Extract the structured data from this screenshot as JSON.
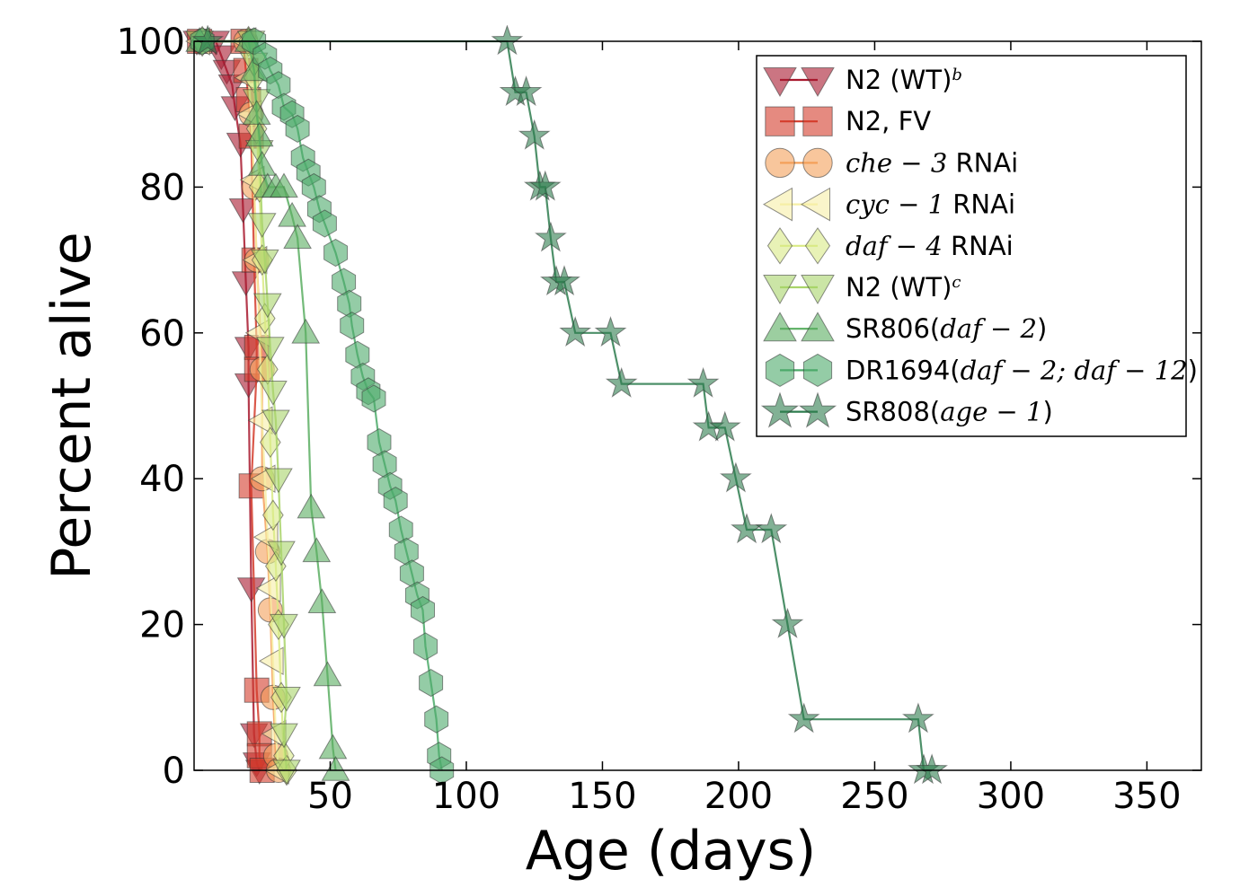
{
  "chart_data": {
    "type": "line",
    "title": "",
    "xlabel": "Age (days)",
    "ylabel": "Percent alive",
    "xlim": [
      0,
      370
    ],
    "ylim": [
      0,
      100
    ],
    "xticks": [
      50,
      100,
      150,
      200,
      250,
      300,
      350
    ],
    "yticks": [
      0,
      20,
      40,
      60,
      80,
      100
    ],
    "grid": false,
    "legend_position": "top-right",
    "series": [
      {
        "name": "N2 (WT)",
        "name_sup": "b",
        "legend": [
          {
            "text": "N2 (WT)",
            "italic": false
          },
          {
            "text": "b",
            "italic": true,
            "sup": true
          }
        ],
        "marker": "triangle-down",
        "color": "#a8192e",
        "points": [
          [
            1,
            100
          ],
          [
            8,
            100
          ],
          [
            10,
            98
          ],
          [
            12,
            96
          ],
          [
            14,
            94
          ],
          [
            15,
            91
          ],
          [
            17,
            86
          ],
          [
            18,
            77
          ],
          [
            19,
            67
          ],
          [
            20,
            58
          ],
          [
            20,
            53
          ],
          [
            21,
            25
          ],
          [
            22,
            5
          ],
          [
            23,
            1
          ],
          [
            24,
            0
          ]
        ]
      },
      {
        "name": "N2, FV",
        "legend": [
          {
            "text": "N2, FV",
            "italic": false
          }
        ],
        "marker": "square",
        "color": "#d43c2c",
        "points": [
          [
            2,
            100
          ],
          [
            18,
            100
          ],
          [
            19,
            96
          ],
          [
            20,
            92
          ],
          [
            21,
            87
          ],
          [
            22,
            70
          ],
          [
            23,
            58
          ],
          [
            23,
            55
          ],
          [
            21,
            39
          ],
          [
            23,
            11
          ],
          [
            24,
            5
          ],
          [
            24,
            2
          ],
          [
            25,
            0
          ]
        ]
      },
      {
        "name": "che−3 RNAi",
        "legend": [
          {
            "text": "che − 3",
            "italic": true
          },
          {
            "text": " RNAi",
            "italic": false
          }
        ],
        "marker": "circle",
        "color": "#f4a05a",
        "points": [
          [
            3,
            100
          ],
          [
            19,
            100
          ],
          [
            21,
            90
          ],
          [
            22,
            80
          ],
          [
            23,
            70
          ],
          [
            25,
            55
          ],
          [
            25,
            40
          ],
          [
            27,
            30
          ],
          [
            28,
            22
          ],
          [
            29,
            10
          ],
          [
            30,
            2
          ],
          [
            31,
            0
          ]
        ]
      },
      {
        "name": "cyc−1 RNAi",
        "legend": [
          {
            "text": "cyc − 1",
            "italic": true
          },
          {
            "text": " RNAi",
            "italic": false
          }
        ],
        "marker": "triangle-left",
        "color": "#f6efa6",
        "points": [
          [
            2,
            100
          ],
          [
            19,
            100
          ],
          [
            20,
            95
          ],
          [
            21,
            90
          ],
          [
            22,
            81
          ],
          [
            23,
            70
          ],
          [
            24,
            60
          ],
          [
            25,
            48
          ],
          [
            26,
            40
          ],
          [
            27,
            32
          ],
          [
            28,
            25
          ],
          [
            29,
            15
          ],
          [
            30,
            5
          ],
          [
            31,
            0
          ]
        ]
      },
      {
        "name": "daf−4 RNAi",
        "legend": [
          {
            "text": "daf − 4",
            "italic": true
          },
          {
            "text": " RNAi",
            "italic": false
          }
        ],
        "marker": "diamond",
        "color": "#d9ea85",
        "points": [
          [
            3,
            100
          ],
          [
            20,
            100
          ],
          [
            22,
            95
          ],
          [
            23,
            88
          ],
          [
            24,
            80
          ],
          [
            25,
            70
          ],
          [
            26,
            62
          ],
          [
            27,
            55
          ],
          [
            28,
            45
          ],
          [
            29,
            35
          ],
          [
            30,
            28
          ],
          [
            31,
            20
          ],
          [
            32,
            10
          ],
          [
            33,
            2
          ],
          [
            34,
            0
          ]
        ]
      },
      {
        "name": "N2 (WT)",
        "name_sup": "c",
        "legend": [
          {
            "text": "N2 (WT)",
            "italic": false
          },
          {
            "text": "c",
            "italic": true,
            "sup": true
          }
        ],
        "marker": "triangle-down",
        "color": "#a9d46a",
        "points": [
          [
            2,
            100
          ],
          [
            21,
            100
          ],
          [
            22,
            97
          ],
          [
            23,
            92
          ],
          [
            24,
            85
          ],
          [
            25,
            75
          ],
          [
            26,
            70
          ],
          [
            27,
            64
          ],
          [
            28,
            58
          ],
          [
            29,
            52
          ],
          [
            30,
            48
          ],
          [
            31,
            40
          ],
          [
            32,
            30
          ],
          [
            33,
            20
          ],
          [
            34,
            10
          ],
          [
            33,
            5
          ],
          [
            34,
            0
          ]
        ]
      },
      {
        "name": "SR806(daf−2)",
        "legend": [
          {
            "text": "SR806(",
            "italic": false
          },
          {
            "text": "daf − 2",
            "italic": true
          },
          {
            "text": ")",
            "italic": false
          }
        ],
        "marker": "triangle-up",
        "color": "#5aae61",
        "points": [
          [
            2,
            100
          ],
          [
            20,
            100
          ],
          [
            22,
            96
          ],
          [
            23,
            90
          ],
          [
            24,
            87
          ],
          [
            25,
            83
          ],
          [
            27,
            80
          ],
          [
            30,
            80
          ],
          [
            33,
            80
          ],
          [
            36,
            76
          ],
          [
            38,
            73
          ],
          [
            41,
            60
          ],
          [
            43,
            36
          ],
          [
            45,
            30
          ],
          [
            47,
            23
          ],
          [
            49,
            13
          ],
          [
            51,
            3
          ],
          [
            52,
            0
          ]
        ]
      },
      {
        "name": "DR1694(daf−2; daf−12)",
        "legend": [
          {
            "text": "DR1694(",
            "italic": false
          },
          {
            "text": "daf − 2; daf − 12",
            "italic": true
          },
          {
            "text": ")",
            "italic": false
          }
        ],
        "marker": "hexagon",
        "color": "#4caa6a",
        "points": [
          [
            3,
            100
          ],
          [
            22,
            100
          ],
          [
            26,
            98
          ],
          [
            28,
            96
          ],
          [
            31,
            94
          ],
          [
            33,
            91
          ],
          [
            36,
            90
          ],
          [
            38,
            88
          ],
          [
            40,
            84
          ],
          [
            42,
            82
          ],
          [
            44,
            80
          ],
          [
            46,
            77
          ],
          [
            48,
            75
          ],
          [
            52,
            71
          ],
          [
            55,
            67
          ],
          [
            57,
            64
          ],
          [
            58,
            61
          ],
          [
            60,
            57
          ],
          [
            62,
            54
          ],
          [
            64,
            52
          ],
          [
            66,
            51
          ],
          [
            68,
            45
          ],
          [
            70,
            42
          ],
          [
            72,
            39
          ],
          [
            74,
            37
          ],
          [
            76,
            33
          ],
          [
            78,
            30
          ],
          [
            80,
            27
          ],
          [
            82,
            24
          ],
          [
            84,
            22
          ],
          [
            85,
            17
          ],
          [
            87,
            12
          ],
          [
            89,
            7
          ],
          [
            90,
            2
          ],
          [
            91,
            0
          ]
        ]
      },
      {
        "name": "SR808(age−1)",
        "legend": [
          {
            "text": "SR808(",
            "italic": false
          },
          {
            "text": "age − 1",
            "italic": true
          },
          {
            "text": ")",
            "italic": false
          }
        ],
        "marker": "star",
        "color": "#2e7d4f",
        "points": [
          [
            5,
            100
          ],
          [
            115,
            100
          ],
          [
            118,
            93
          ],
          [
            122,
            93
          ],
          [
            125,
            87
          ],
          [
            127,
            80
          ],
          [
            129,
            80
          ],
          [
            131,
            73
          ],
          [
            133,
            67
          ],
          [
            136,
            67
          ],
          [
            140,
            60
          ],
          [
            153,
            60
          ],
          [
            157,
            53
          ],
          [
            187,
            53
          ],
          [
            189,
            47
          ],
          [
            195,
            47
          ],
          [
            199,
            40
          ],
          [
            203,
            33
          ],
          [
            212,
            33
          ],
          [
            218,
            20
          ],
          [
            224,
            7
          ],
          [
            266,
            7
          ],
          [
            268,
            0
          ],
          [
            271,
            0
          ]
        ]
      }
    ]
  }
}
